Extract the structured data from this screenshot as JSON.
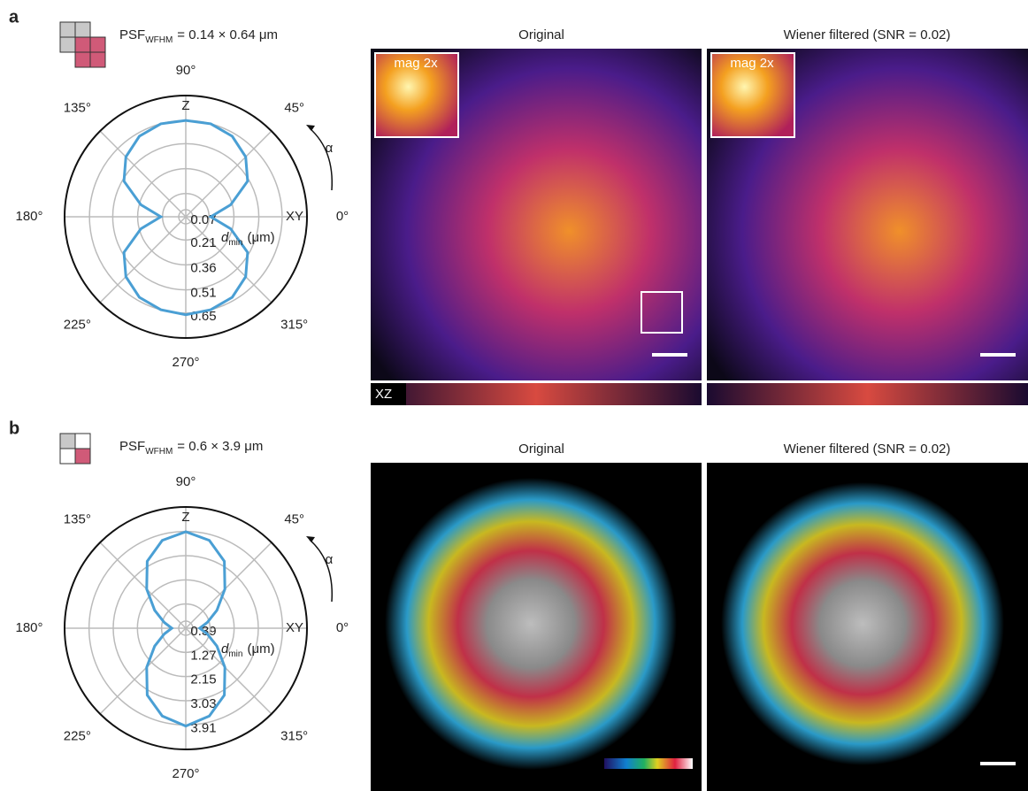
{
  "chart_data": [
    {
      "type": "polar",
      "theta": [
        0,
        15,
        30,
        45,
        60,
        75,
        90,
        105,
        120,
        135,
        150,
        165,
        180,
        195,
        210,
        225,
        240,
        255,
        270,
        285,
        300,
        315,
        330,
        345
      ],
      "values": [
        0.22,
        0.35,
        0.5,
        0.58,
        0.63,
        0.65,
        0.65,
        0.65,
        0.63,
        0.58,
        0.5,
        0.35,
        0.22,
        0.35,
        0.5,
        0.58,
        0.63,
        0.65,
        0.66,
        0.65,
        0.63,
        0.58,
        0.5,
        0.35
      ],
      "color": "#4a9fd4",
      "rlim": [
        0.07,
        0.8
      ],
      "rticks": [
        0.07,
        0.21,
        0.36,
        0.51,
        0.65
      ],
      "thetaticks": [
        {
          "value": 0,
          "label": "0°"
        },
        {
          "value": 45,
          "label": "45°"
        },
        {
          "value": 90,
          "label": "90°"
        },
        {
          "value": 135,
          "label": "135°"
        },
        {
          "value": 180,
          "label": "180°"
        },
        {
          "value": 225,
          "label": "225°"
        },
        {
          "value": 270,
          "label": "270°"
        },
        {
          "value": 315,
          "label": "315°"
        }
      ],
      "x_label": "XY",
      "z_label": "Z",
      "direction_label": "α",
      "r_label": {
        "main": "d",
        "sub": "min",
        "rest": "(μm)"
      }
    },
    {
      "type": "polar",
      "theta": [
        0,
        15,
        30,
        45,
        60,
        75,
        90,
        105,
        120,
        135,
        150,
        165,
        180,
        195,
        210,
        225,
        240,
        255,
        270,
        285,
        300,
        315,
        330,
        345
      ],
      "values": [
        0.9,
        1.2,
        1.7,
        2.4,
        3.2,
        3.7,
        3.9,
        3.7,
        3.2,
        2.4,
        1.7,
        1.2,
        0.9,
        1.2,
        1.7,
        2.4,
        3.2,
        3.7,
        3.95,
        3.7,
        3.2,
        2.4,
        1.7,
        1.2
      ],
      "color": "#4a9fd4",
      "rlim": [
        0.39,
        4.8
      ],
      "rticks": [
        0.39,
        1.27,
        2.15,
        3.03,
        3.91
      ],
      "thetaticks": [
        {
          "value": 0,
          "label": "0°"
        },
        {
          "value": 45,
          "label": "45°"
        },
        {
          "value": 90,
          "label": "90°"
        },
        {
          "value": 135,
          "label": "135°"
        },
        {
          "value": 180,
          "label": "180°"
        },
        {
          "value": 225,
          "label": "225°"
        },
        {
          "value": 270,
          "label": "270°"
        },
        {
          "value": 315,
          "label": "315°"
        }
      ],
      "x_label": "XY",
      "z_label": "Z",
      "direction_label": "α",
      "r_label": {
        "main": "d",
        "sub": "min",
        "rest": "(μm)"
      }
    }
  ],
  "panels": [
    {
      "label": "a",
      "psf": {
        "main": "PSF",
        "sub": "WFHM",
        "rest": "= 0.14 × 0.64 μm"
      },
      "titles": [
        "Original",
        "Wiener filtered (SNR = 0.02)"
      ],
      "insets": [
        "mag 2x",
        "mag 2x"
      ],
      "strip": "XZ"
    },
    {
      "label": "b",
      "psf": {
        "main": "PSF",
        "sub": "WFHM",
        "rest": "= 0.6 × 3.9  μm"
      },
      "titles": [
        "Original",
        "Wiener filtered (SNR = 0.02)"
      ]
    }
  ]
}
